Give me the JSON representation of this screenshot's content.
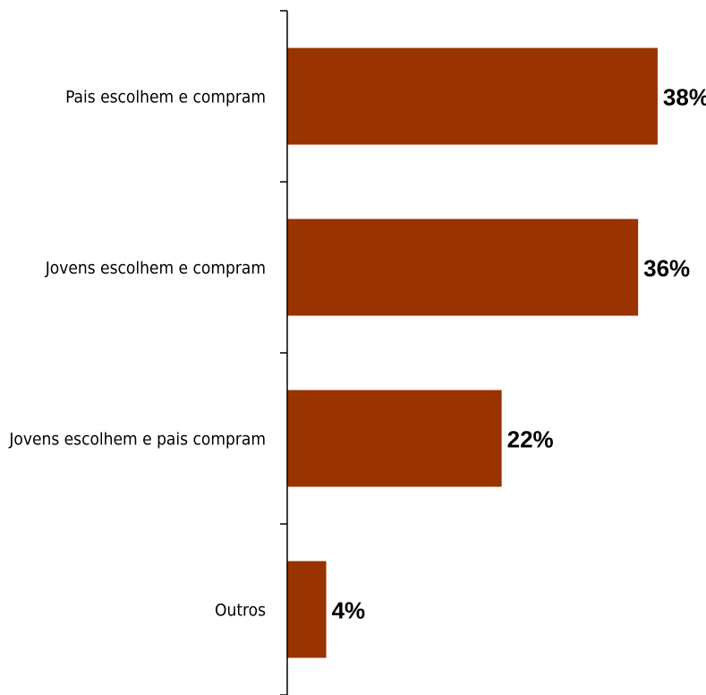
{
  "chart_data": {
    "type": "bar",
    "orientation": "horizontal",
    "categories": [
      "Pais escolhem e compram",
      "Jovens escolhem e compram",
      "Jovens escolhem e pais compram",
      "Outros"
    ],
    "values": [
      38,
      36,
      22,
      4
    ],
    "value_labels": [
      "38%",
      "36%",
      "22%",
      "4%"
    ],
    "unit": "%",
    "xlim": [
      0,
      42
    ],
    "grid": false,
    "legend": "none",
    "bar_color": "#993300"
  }
}
